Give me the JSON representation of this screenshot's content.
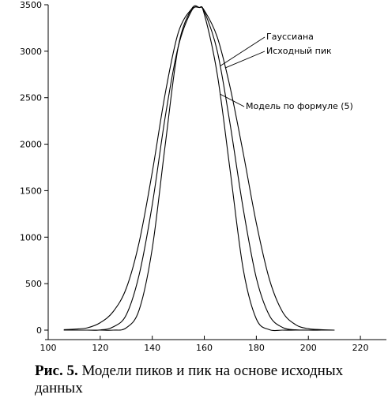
{
  "chart_data": {
    "type": "line",
    "title": "",
    "xlabel": "",
    "ylabel": "",
    "xlim": [
      100,
      230
    ],
    "ylim": [
      0,
      3500
    ],
    "xticks": [
      100,
      120,
      140,
      160,
      180,
      200,
      220
    ],
    "yticks": [
      0,
      500,
      1000,
      1500,
      2000,
      2500,
      3000,
      3500
    ],
    "grid": false,
    "legend": "none",
    "x": [
      106,
      110,
      115,
      120,
      125,
      130,
      135,
      140,
      145,
      150,
      155,
      158,
      160,
      165,
      170,
      175,
      180,
      185,
      190,
      195,
      200,
      205,
      210
    ],
    "series": [
      {
        "name": "Гауссиана",
        "values": [
          0,
          0,
          0,
          2,
          35,
          165,
          600,
          1350,
          2300,
          3050,
          3430,
          3470,
          3430,
          3000,
          2200,
          1300,
          560,
          160,
          30,
          3,
          0,
          0,
          0
        ]
      },
      {
        "name": "Исходный пик",
        "values": [
          5,
          10,
          25,
          80,
          200,
          450,
          950,
          1700,
          2550,
          3200,
          3450,
          3470,
          3440,
          3150,
          2600,
          1900,
          1150,
          550,
          200,
          60,
          15,
          5,
          0
        ]
      },
      {
        "name": "Модель по формуле (5)",
        "values": [
          0,
          0,
          0,
          0,
          0,
          25,
          220,
          880,
          2000,
          3050,
          3450,
          3470,
          3400,
          2750,
          1700,
          650,
          120,
          5,
          0,
          0,
          0,
          0,
          0
        ]
      }
    ],
    "annotations": [
      {
        "text": "Гауссиана",
        "series": 0,
        "pointer_x": 166
      },
      {
        "text": "Исходный пик",
        "series": 1,
        "pointer_x": 168
      },
      {
        "text": "Модель по формуле (5)",
        "series": 2,
        "pointer_x": 166
      }
    ]
  },
  "caption": {
    "label": "Рис. 5.",
    "text": "Модели пиков и пик на основе исходных данных"
  }
}
